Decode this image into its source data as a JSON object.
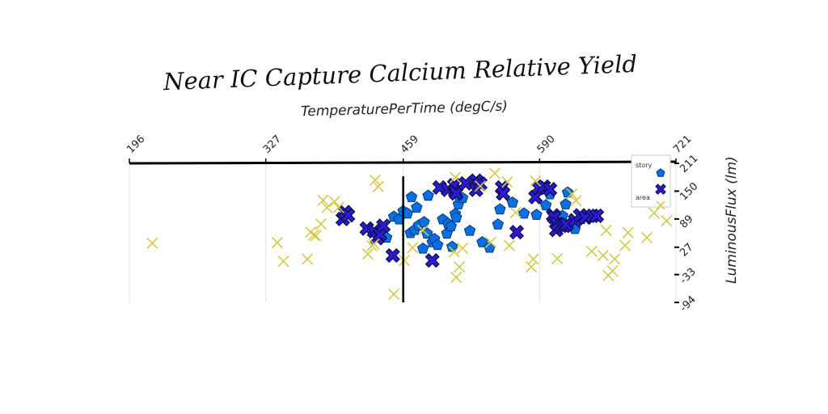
{
  "chart_data": {
    "type": "scatter",
    "title": "Near IC Capture Calcium Relative Yield",
    "xlabel": "TemperaturePerTime (degC/s)",
    "ylabel": "LuminousFlux (lm)",
    "xlim": [
      196,
      721
    ],
    "ylim": [
      -94,
      211
    ],
    "x_ticks": [
      "196",
      "327",
      "459",
      "590",
      "721"
    ],
    "y_ticks": [
      "211",
      "150",
      "89",
      "27",
      "-33",
      "-94"
    ],
    "x_axis_position": "top",
    "y_axis_position": "right",
    "grid": "vertical",
    "vline_x": 459,
    "legend_placement": "top-right",
    "series": [
      {
        "name": "story",
        "marker": "pentagon",
        "color": "#0a6fe0",
        "points": [
          [
            443,
            48
          ],
          [
            450,
            94
          ],
          [
            455,
            88
          ],
          [
            459,
            106
          ],
          [
            463,
            101
          ],
          [
            466,
            58
          ],
          [
            467,
            137
          ],
          [
            470,
            65
          ],
          [
            472,
            114
          ],
          [
            474,
            75
          ],
          [
            478,
            24
          ],
          [
            479,
            82
          ],
          [
            482,
            57
          ],
          [
            483,
            140
          ],
          [
            487,
            38
          ],
          [
            489,
            45
          ],
          [
            492,
            32
          ],
          [
            497,
            88
          ],
          [
            501,
            57
          ],
          [
            502,
            79
          ],
          [
            506,
            28
          ],
          [
            505,
            73
          ],
          [
            509,
            100
          ],
          [
            510,
            92
          ],
          [
            512,
            121
          ],
          [
            513,
            137
          ],
          [
            516,
            135
          ],
          [
            523,
            63
          ],
          [
            535,
            38
          ],
          [
            542,
            26
          ],
          [
            550,
            77
          ],
          [
            552,
            110
          ],
          [
            564,
            125
          ],
          [
            575,
            101
          ],
          [
            587,
            98
          ],
          [
            596,
            119
          ],
          [
            600,
            143
          ],
          [
            608,
            80
          ],
          [
            612,
            96
          ],
          [
            615,
            121
          ],
          [
            617,
            147
          ],
          [
            624,
            67
          ],
          [
            630,
            89
          ]
        ]
      },
      {
        "name": "",
        "marker": "x-bold",
        "color": "#2a1bd1",
        "points": [
          [
            401,
            89
          ],
          [
            403,
            104
          ],
          [
            406,
            97
          ],
          [
            424,
            68
          ],
          [
            431,
            62
          ],
          [
            434,
            47
          ],
          [
            437,
            55
          ],
          [
            440,
            74
          ],
          [
            449,
            9
          ],
          [
            487,
            -2
          ],
          [
            494,
            158
          ],
          [
            502,
            153
          ],
          [
            508,
            163
          ],
          [
            509,
            149
          ],
          [
            510,
            145
          ],
          [
            519,
            167
          ],
          [
            529,
            173
          ],
          [
            529,
            153
          ],
          [
            533,
            166
          ],
          [
            554,
            158
          ],
          [
            555,
            145
          ],
          [
            568,
            60
          ],
          [
            586,
            137
          ],
          [
            589,
            157
          ],
          [
            594,
            160
          ],
          [
            600,
            154
          ],
          [
            603,
            97
          ],
          [
            604,
            93
          ],
          [
            606,
            65
          ],
          [
            607,
            78
          ],
          [
            611,
            74
          ],
          [
            614,
            74
          ],
          [
            616,
            77
          ],
          [
            624,
            86
          ],
          [
            629,
            97
          ],
          [
            634,
            92
          ],
          [
            641,
            96
          ],
          [
            645,
            96
          ]
        ]
      },
      {
        "name": "area",
        "marker": "x-thin",
        "color": "#d8c84a",
        "points": [
          [
            218,
            36
          ],
          [
            338,
            37
          ],
          [
            344,
            -4
          ],
          [
            367,
            1
          ],
          [
            370,
            60
          ],
          [
            373,
            54
          ],
          [
            375,
            52
          ],
          [
            380,
            78
          ],
          [
            382,
            130
          ],
          [
            386,
            114
          ],
          [
            393,
            127
          ],
          [
            397,
            114
          ],
          [
            425,
            12
          ],
          [
            429,
            30
          ],
          [
            431,
            34
          ],
          [
            432,
            174
          ],
          [
            435,
            160
          ],
          [
            450,
            -76
          ],
          [
            460,
            -2
          ],
          [
            468,
            26
          ],
          [
            478,
            64
          ],
          [
            509,
            180
          ],
          [
            508,
            17
          ],
          [
            510,
            -39
          ],
          [
            513,
            -16
          ],
          [
            516,
            25
          ],
          [
            533,
            161
          ],
          [
            543,
            38
          ],
          [
            547,
            189
          ],
          [
            559,
            170
          ],
          [
            561,
            31
          ],
          [
            567,
            103
          ],
          [
            582,
            -16
          ],
          [
            586,
            172
          ],
          [
            584,
            1
          ],
          [
            607,
            2
          ],
          [
            621,
            144
          ],
          [
            625,
            129
          ],
          [
            640,
            18
          ],
          [
            651,
            9
          ],
          [
            654,
            64
          ],
          [
            656,
            -35
          ],
          [
            660,
            -25
          ],
          [
            662,
            1
          ],
          [
            672,
            31
          ],
          [
            675,
            59
          ],
          [
            693,
            48
          ],
          [
            700,
            102
          ],
          [
            712,
            85
          ]
        ]
      }
    ]
  }
}
